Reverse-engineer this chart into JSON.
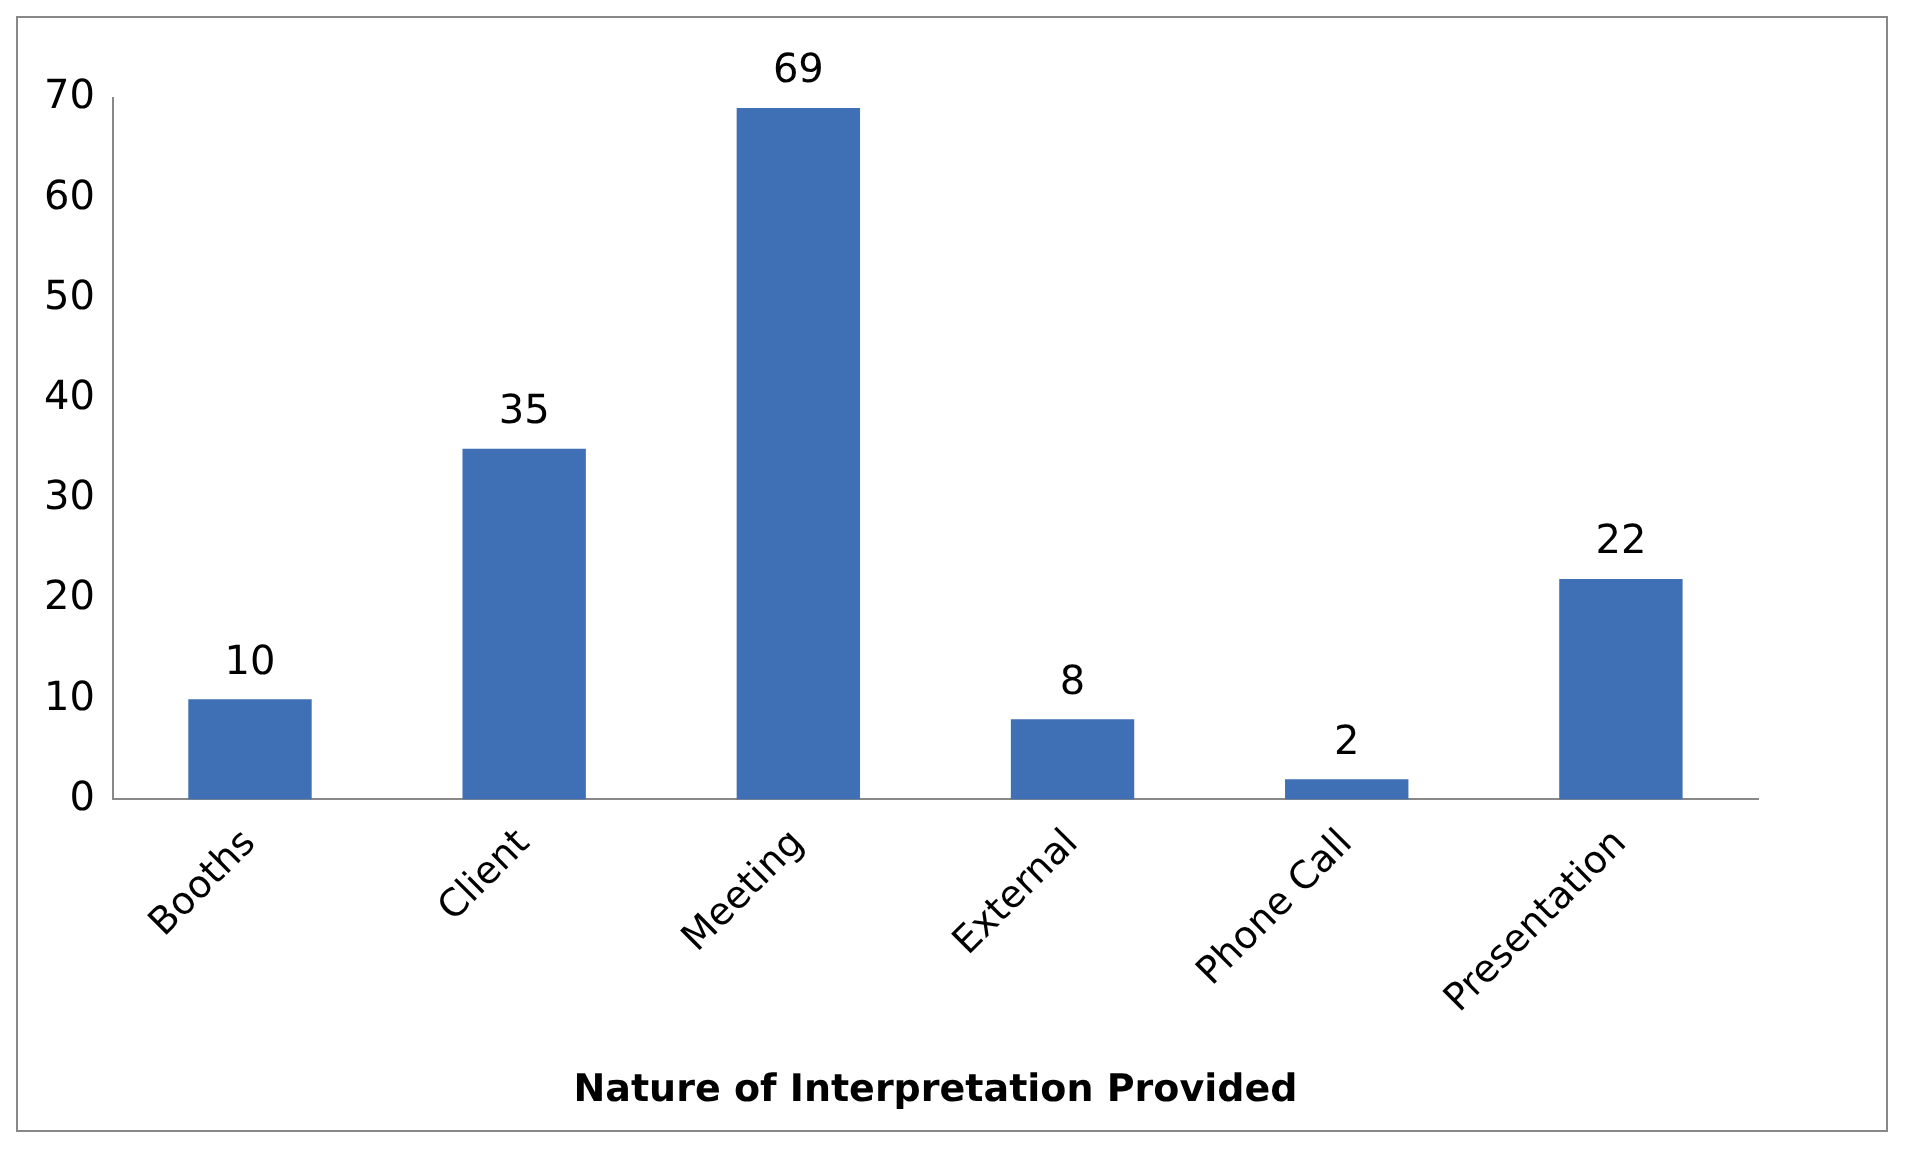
{
  "chart_data": {
    "type": "bar",
    "xlabel": "Nature of Interpretation Provided",
    "categories": [
      "Booths",
      "Client",
      "Meeting",
      "External",
      "Phone Call",
      "Presentation"
    ],
    "values": [
      10,
      35,
      69,
      8,
      2,
      22
    ],
    "color": "#3f6fb5",
    "ylim": [
      0,
      70
    ],
    "yticks": [
      0,
      10,
      20,
      30,
      40,
      50,
      60,
      70
    ],
    "grid": false,
    "legend": false,
    "data_labels": true
  }
}
